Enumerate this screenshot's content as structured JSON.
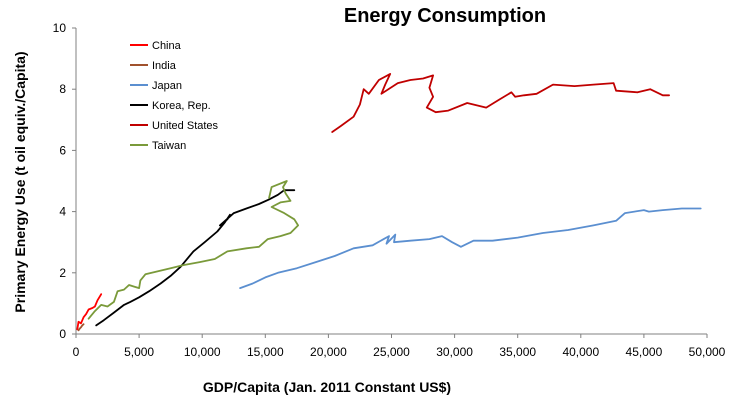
{
  "chart_data": {
    "type": "line",
    "title": "Energy Consumption",
    "xlabel": "GDP/Capita (Jan. 2011 Constant US$)",
    "ylabel": "Primary Energy Use (t oil equiv./Capita)",
    "xlim": [
      0,
      50000
    ],
    "ylim": [
      0,
      10
    ],
    "x_ticks": [
      0,
      5000,
      10000,
      15000,
      20000,
      25000,
      30000,
      35000,
      40000,
      45000,
      50000
    ],
    "x_tick_labels": [
      "0",
      "5,000",
      "10,000",
      "15,000",
      "20,000",
      "25,000",
      "30,000",
      "35,000",
      "40,000",
      "45,000",
      "50,000"
    ],
    "y_ticks": [
      0,
      2,
      4,
      6,
      8,
      10
    ],
    "y_tick_labels": [
      "0",
      "2",
      "4",
      "6",
      "8",
      "10"
    ],
    "grid": false,
    "legend_position": "top-left",
    "series": [
      {
        "name": "China",
        "color": "#ff0000",
        "points": [
          [
            100,
            0.15
          ],
          [
            200,
            0.4
          ],
          [
            400,
            0.35
          ],
          [
            600,
            0.55
          ],
          [
            800,
            0.65
          ],
          [
            1000,
            0.8
          ],
          [
            1300,
            0.85
          ],
          [
            1500,
            0.9
          ],
          [
            1700,
            1.1
          ],
          [
            2000,
            1.3
          ]
        ]
      },
      {
        "name": "India",
        "color": "#a0522d",
        "points": [
          [
            200,
            0.12
          ],
          [
            300,
            0.18
          ],
          [
            400,
            0.22
          ],
          [
            500,
            0.28
          ],
          [
            600,
            0.32
          ]
        ]
      },
      {
        "name": "Japan",
        "color": "#5b8fd0",
        "points": [
          [
            13000,
            1.5
          ],
          [
            14000,
            1.65
          ],
          [
            15000,
            1.85
          ],
          [
            16000,
            2.0
          ],
          [
            17500,
            2.15
          ],
          [
            19000,
            2.35
          ],
          [
            20500,
            2.55
          ],
          [
            22000,
            2.8
          ],
          [
            23500,
            2.9
          ],
          [
            24800,
            3.2
          ],
          [
            24600,
            2.95
          ],
          [
            25300,
            3.25
          ],
          [
            25200,
            3.0
          ],
          [
            26500,
            3.05
          ],
          [
            28000,
            3.1
          ],
          [
            29000,
            3.2
          ],
          [
            29800,
            3.0
          ],
          [
            30500,
            2.85
          ],
          [
            31500,
            3.05
          ],
          [
            33000,
            3.05
          ],
          [
            35000,
            3.15
          ],
          [
            37000,
            3.3
          ],
          [
            39000,
            3.4
          ],
          [
            41000,
            3.55
          ],
          [
            42800,
            3.7
          ],
          [
            43500,
            3.95
          ],
          [
            45000,
            4.05
          ],
          [
            45400,
            4.0
          ],
          [
            46500,
            4.05
          ],
          [
            48000,
            4.1
          ],
          [
            49500,
            4.1
          ]
        ]
      },
      {
        "name": "Korea, Rep.",
        "color": "#000000",
        "points": [
          [
            1600,
            0.28
          ],
          [
            2200,
            0.45
          ],
          [
            3000,
            0.7
          ],
          [
            3800,
            0.95
          ],
          [
            4300,
            1.05
          ],
          [
            5000,
            1.2
          ],
          [
            5800,
            1.4
          ],
          [
            6700,
            1.65
          ],
          [
            7500,
            1.9
          ],
          [
            8300,
            2.2
          ],
          [
            9300,
            2.7
          ],
          [
            10200,
            3.0
          ],
          [
            11200,
            3.35
          ],
          [
            11800,
            3.65
          ],
          [
            12200,
            3.9
          ],
          [
            12000,
            3.75
          ],
          [
            11400,
            3.55
          ],
          [
            12500,
            3.95
          ],
          [
            13500,
            4.1
          ],
          [
            14500,
            4.25
          ],
          [
            15300,
            4.4
          ],
          [
            16000,
            4.55
          ],
          [
            16500,
            4.7
          ],
          [
            17300,
            4.7
          ]
        ]
      },
      {
        "name": "United States",
        "color": "#c00000",
        "points": [
          [
            20300,
            6.6
          ],
          [
            21000,
            6.8
          ],
          [
            22000,
            7.1
          ],
          [
            22500,
            7.5
          ],
          [
            22800,
            8.0
          ],
          [
            23200,
            7.85
          ],
          [
            24000,
            8.3
          ],
          [
            24900,
            8.5
          ],
          [
            24500,
            8.15
          ],
          [
            24200,
            7.85
          ],
          [
            25500,
            8.2
          ],
          [
            26500,
            8.3
          ],
          [
            27500,
            8.35
          ],
          [
            28300,
            8.45
          ],
          [
            28000,
            8.05
          ],
          [
            28300,
            7.75
          ],
          [
            27800,
            7.4
          ],
          [
            28500,
            7.25
          ],
          [
            29500,
            7.3
          ],
          [
            31000,
            7.55
          ],
          [
            32500,
            7.4
          ],
          [
            33500,
            7.65
          ],
          [
            34500,
            7.9
          ],
          [
            34800,
            7.75
          ],
          [
            35500,
            7.8
          ],
          [
            36500,
            7.85
          ],
          [
            37800,
            8.15
          ],
          [
            39500,
            8.1
          ],
          [
            41000,
            8.15
          ],
          [
            42600,
            8.2
          ],
          [
            42800,
            7.95
          ],
          [
            44500,
            7.9
          ],
          [
            45500,
            8.0
          ],
          [
            46500,
            7.8
          ],
          [
            47000,
            7.8
          ]
        ]
      },
      {
        "name": "Taiwan",
        "color": "#7a9a3a",
        "points": [
          [
            1000,
            0.5
          ],
          [
            1500,
            0.75
          ],
          [
            2000,
            0.95
          ],
          [
            2500,
            0.9
          ],
          [
            3000,
            1.05
          ],
          [
            3300,
            1.4
          ],
          [
            3800,
            1.45
          ],
          [
            4200,
            1.6
          ],
          [
            4600,
            1.55
          ],
          [
            5000,
            1.5
          ],
          [
            5100,
            1.75
          ],
          [
            5500,
            1.95
          ],
          [
            6500,
            2.05
          ],
          [
            7500,
            2.15
          ],
          [
            8500,
            2.25
          ],
          [
            9800,
            2.35
          ],
          [
            11000,
            2.45
          ],
          [
            12000,
            2.7
          ],
          [
            13500,
            2.8
          ],
          [
            14500,
            2.85
          ],
          [
            15200,
            3.1
          ],
          [
            16200,
            3.2
          ],
          [
            17000,
            3.3
          ],
          [
            17600,
            3.55
          ],
          [
            17300,
            3.75
          ],
          [
            16500,
            3.95
          ],
          [
            15500,
            4.15
          ],
          [
            16200,
            4.3
          ],
          [
            17000,
            4.35
          ],
          [
            16600,
            4.6
          ],
          [
            16400,
            4.8
          ],
          [
            16700,
            5.0
          ],
          [
            15500,
            4.8
          ],
          [
            15300,
            4.45
          ]
        ]
      }
    ]
  }
}
